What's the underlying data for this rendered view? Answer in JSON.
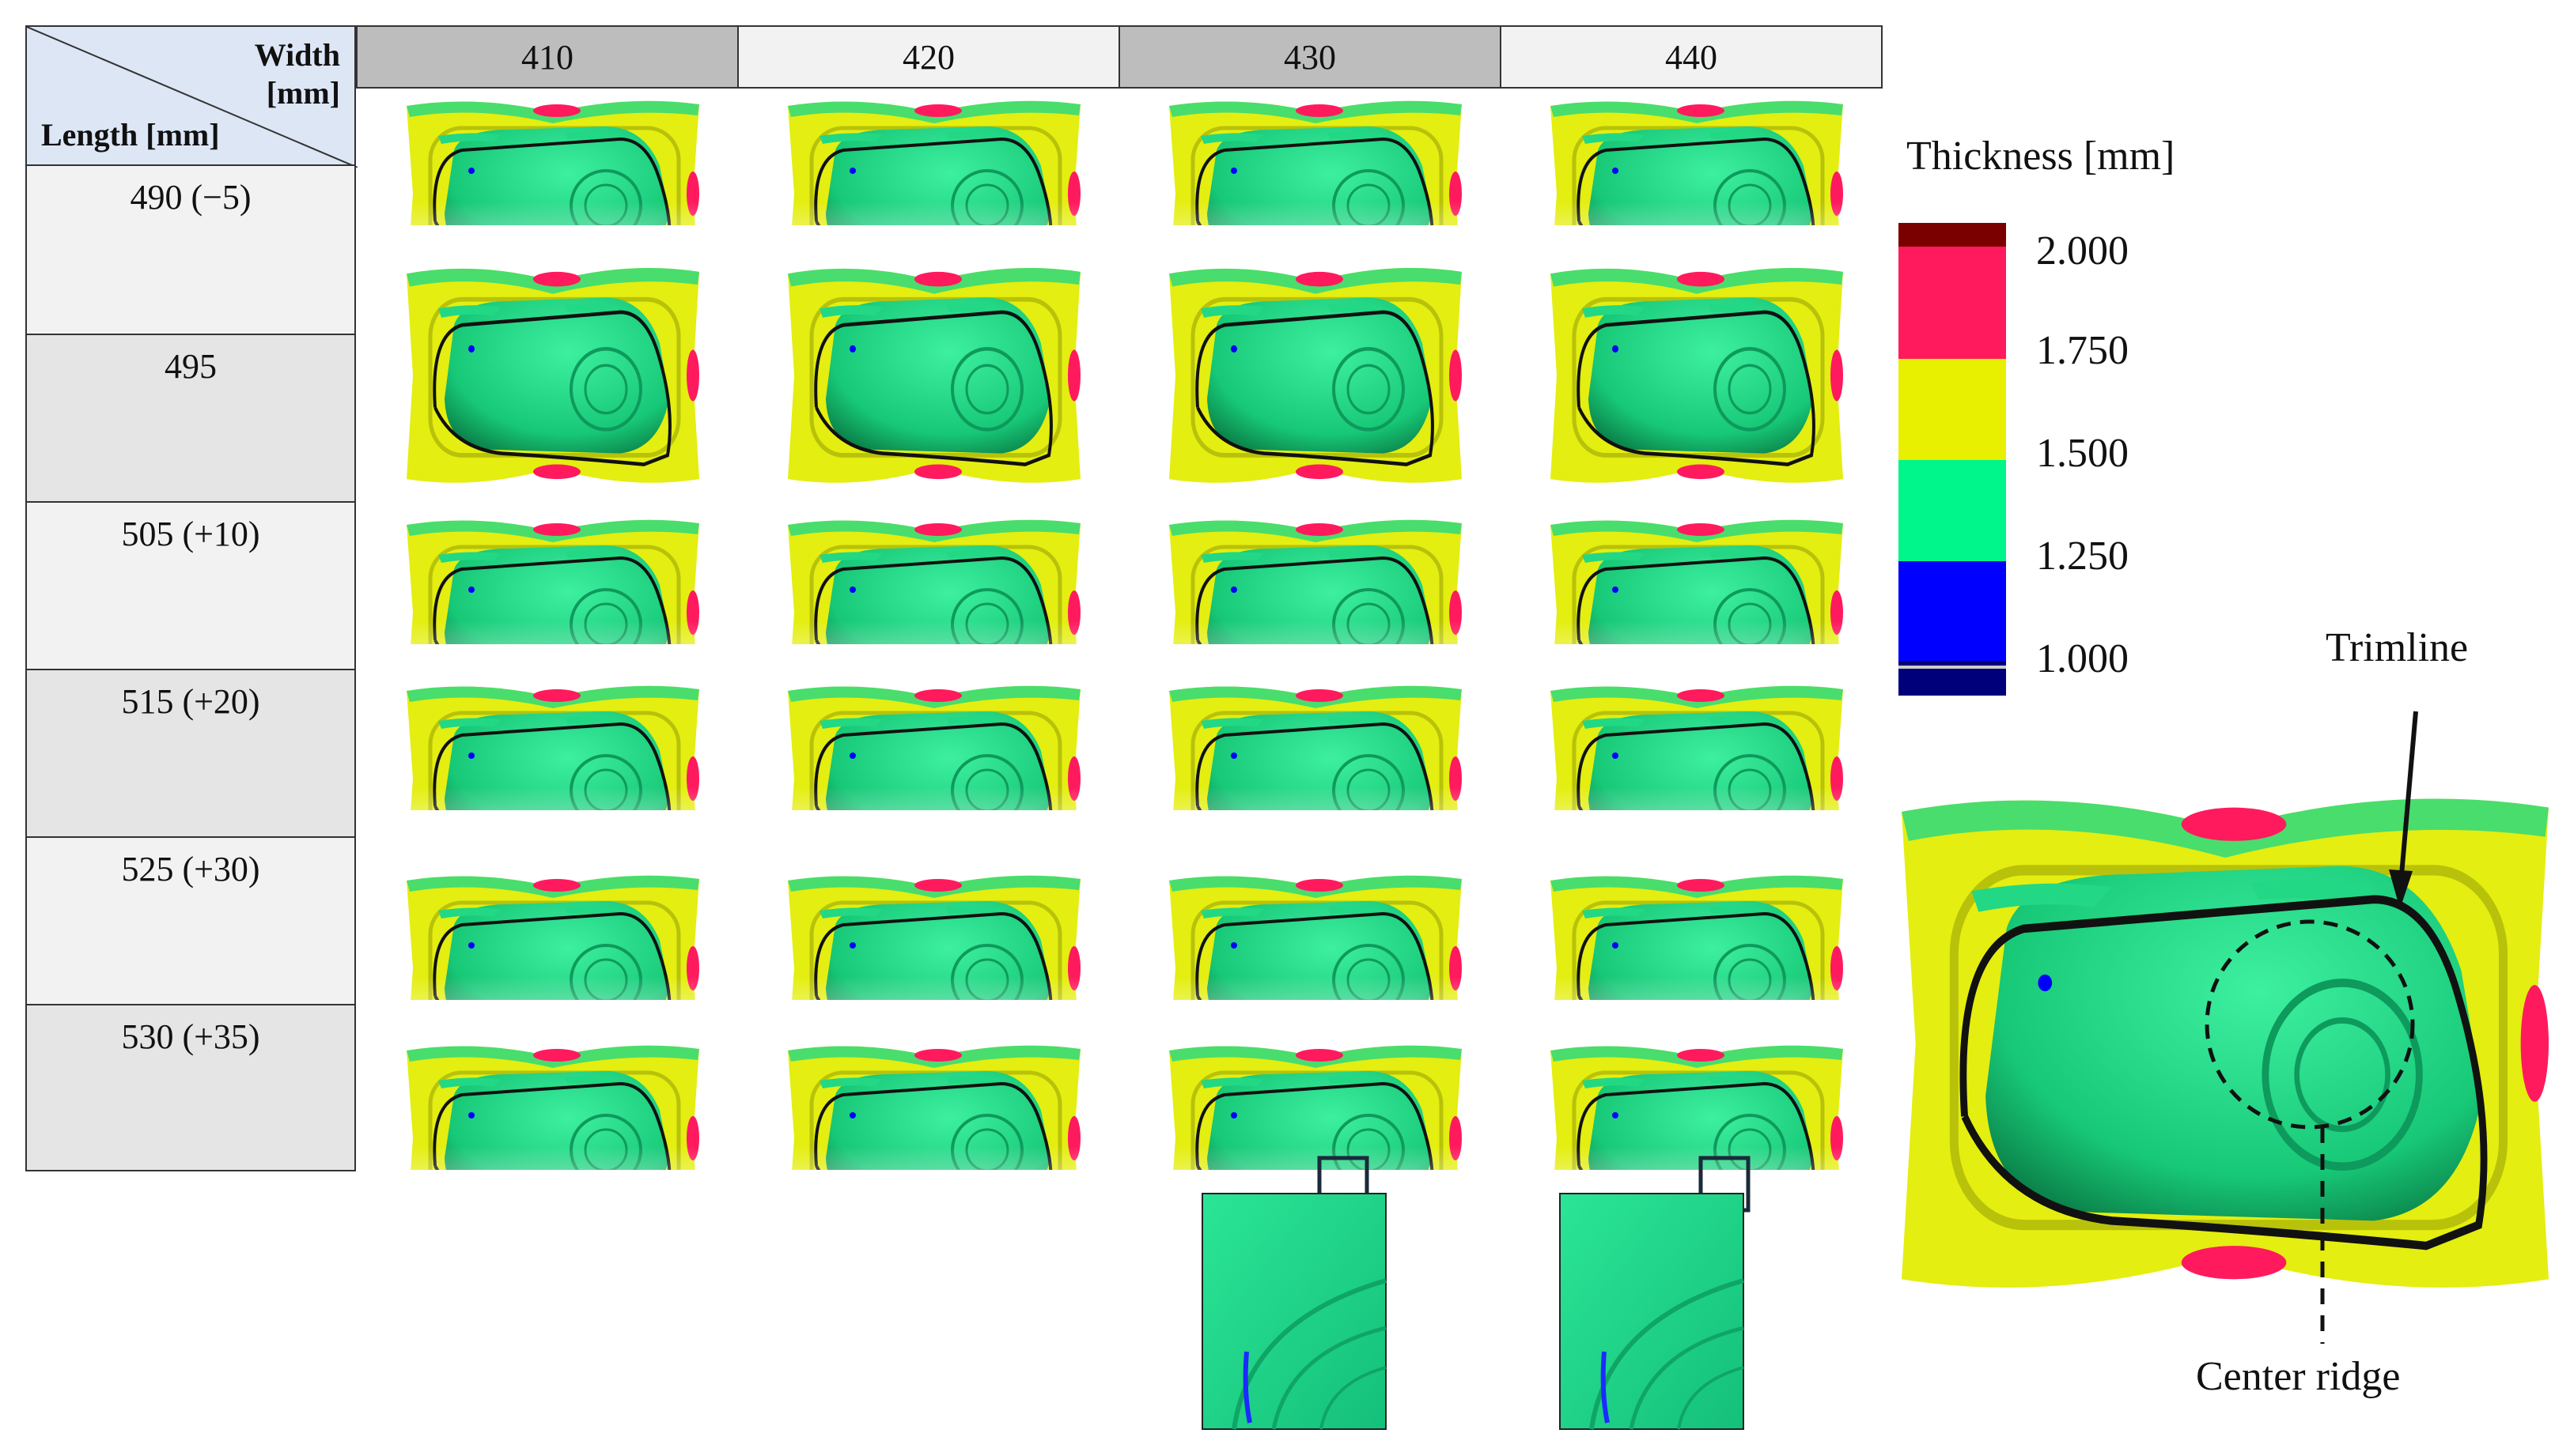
{
  "table": {
    "corner_width_label": "Width",
    "corner_width_unit": "[mm]",
    "corner_length_label": "Length [mm]",
    "columns": [
      "410",
      "420",
      "430",
      "440"
    ],
    "rows": [
      "490 (−5)",
      "495",
      "505 (+10)",
      "515 (+20)",
      "525 (+30)",
      "530 (+35)"
    ]
  },
  "legend": {
    "title": "Thickness [mm]",
    "ticks": [
      "2.000",
      "1.750",
      "1.500",
      "1.250",
      "1.000"
    ],
    "colors": [
      "#7a0000",
      "#ff1a5e",
      "#e8f000",
      "#00f58a",
      "#0000ff",
      "#00007a"
    ]
  },
  "annotations": {
    "trimline": "Trimline",
    "center_ridge": "Center ridge"
  },
  "colors": {
    "header_dark": "#bdbdbd",
    "header_light": "#f2f2f2",
    "row_light": "#f2f2f2",
    "row_dark": "#e5e5e5",
    "part_green": "#1ed886",
    "flange_yellow": "#e4ee10",
    "split_red": "#ff1a5e"
  }
}
